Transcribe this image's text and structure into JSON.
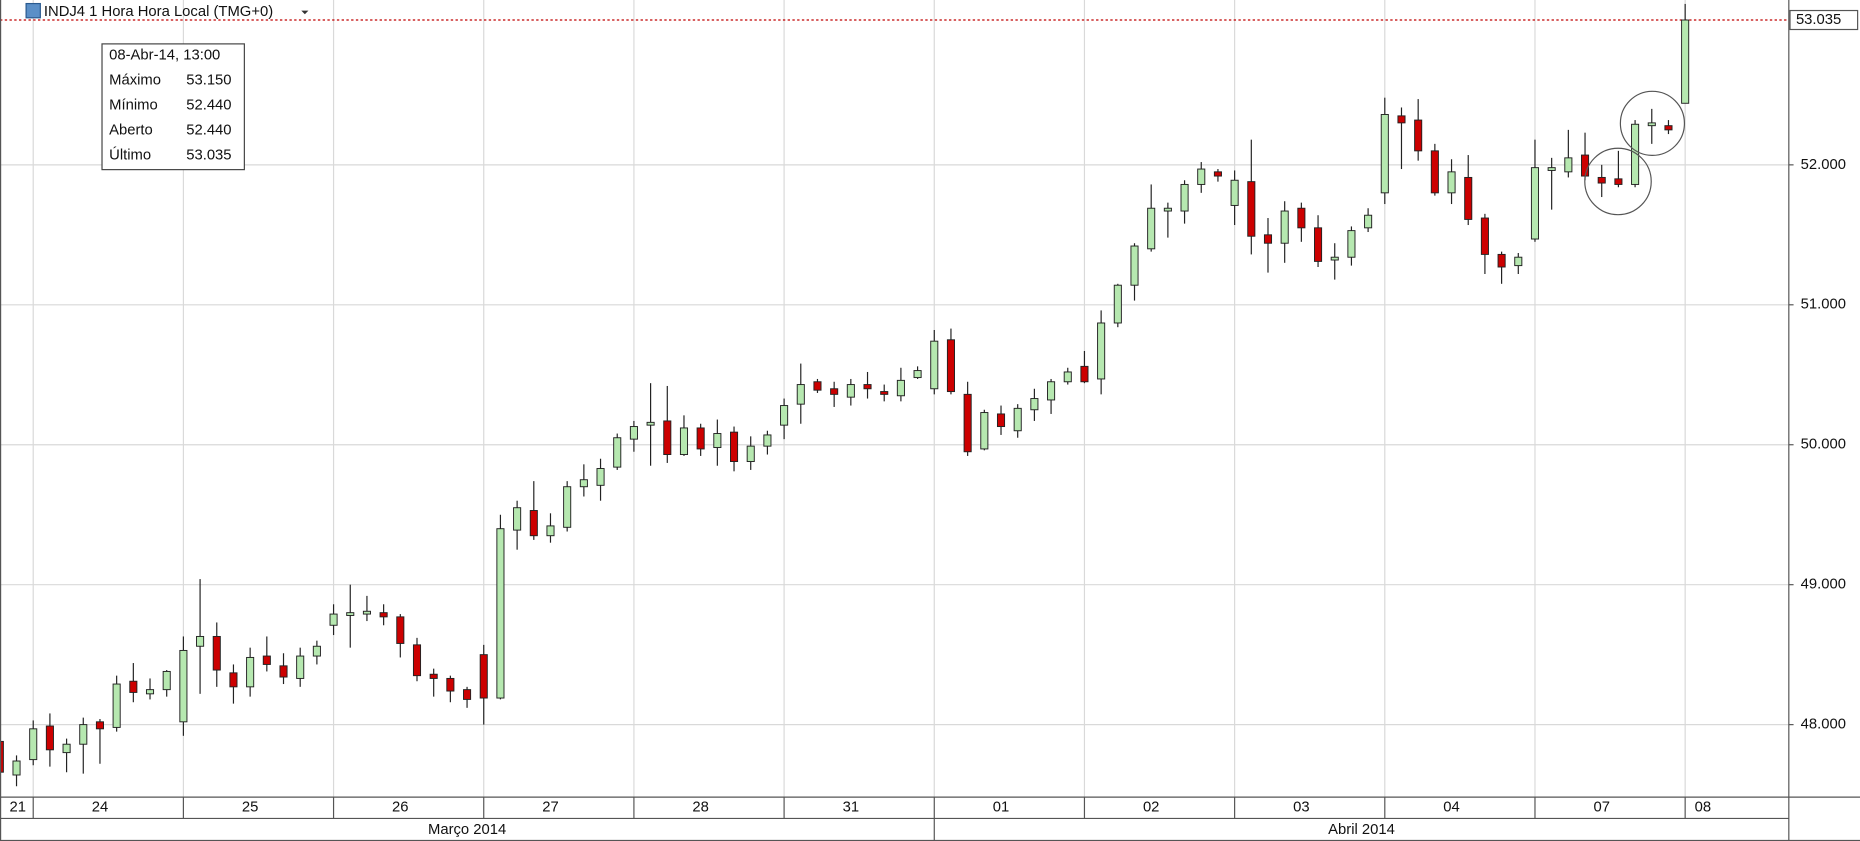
{
  "chart_data": {
    "type": "candlestick",
    "title": "INDJ4 1 Hora Hora Local (TMG+0)",
    "categories": [
      "21",
      null,
      "24",
      null,
      null,
      null,
      null,
      null,
      null,
      null,
      null,
      "25",
      null,
      null,
      null,
      null,
      null,
      null,
      null,
      null,
      "26",
      null,
      null,
      null,
      null,
      null,
      null,
      null,
      null,
      "27",
      null,
      null,
      null,
      null,
      null,
      null,
      null,
      null,
      "28",
      null,
      null,
      null,
      null,
      null,
      null,
      null,
      null,
      "31",
      null,
      null,
      null,
      null,
      null,
      null,
      null,
      null,
      "01",
      null,
      null,
      null,
      null,
      null,
      null,
      null,
      null,
      "02",
      null,
      null,
      null,
      null,
      null,
      null,
      null,
      null,
      "03",
      null,
      null,
      null,
      null,
      null,
      null,
      null,
      null,
      "04",
      null,
      null,
      null,
      null,
      null,
      null,
      null,
      null,
      "07",
      null,
      null,
      null,
      null,
      null,
      null,
      null,
      null,
      "08"
    ],
    "months": [
      "Março 2014",
      null,
      null,
      null,
      null,
      null,
      null,
      null,
      null,
      null,
      null,
      null,
      null,
      null,
      null,
      null,
      null,
      null,
      null,
      null,
      null,
      null,
      null,
      null,
      null,
      null,
      null,
      null,
      null,
      null,
      null,
      null,
      null,
      null,
      null,
      null,
      null,
      null,
      null,
      null,
      null,
      null,
      null,
      null,
      null,
      null,
      null,
      null,
      null,
      null,
      null,
      null,
      null,
      null,
      null,
      null,
      "Abril 2014",
      null,
      null,
      null,
      null,
      null,
      null,
      null,
      null,
      null,
      null,
      null,
      null,
      null,
      null,
      null,
      null,
      null,
      null,
      null,
      null,
      null,
      null,
      null,
      null,
      null,
      null,
      null,
      null,
      null,
      null,
      null,
      null,
      null,
      null,
      null,
      null,
      null,
      null,
      null,
      null,
      null,
      null,
      null,
      null,
      null
    ],
    "series": {
      "open": [
        47.88,
        47.64,
        47.75,
        47.99,
        47.8,
        47.86,
        48.02,
        47.98,
        48.31,
        48.22,
        48.25,
        48.02,
        48.56,
        48.63,
        48.37,
        48.27,
        48.49,
        48.42,
        48.33,
        48.49,
        48.71,
        48.78,
        48.79,
        48.8,
        48.77,
        48.57,
        48.36,
        48.33,
        48.25,
        48.5,
        48.19,
        49.39,
        49.53,
        49.35,
        49.41,
        49.7,
        49.71,
        49.84,
        50.04,
        50.14,
        50.17,
        49.93,
        50.12,
        49.98,
        50.09,
        49.88,
        49.99,
        50.14,
        50.29,
        50.45,
        50.4,
        50.34,
        50.43,
        50.38,
        50.35,
        50.48,
        50.4,
        50.75,
        50.36,
        49.97,
        50.22,
        50.1,
        50.25,
        50.32,
        50.45,
        50.56,
        50.47,
        50.87,
        51.14,
        51.4,
        51.67,
        51.67,
        51.86,
        51.95,
        51.71,
        51.88,
        51.5,
        51.44,
        51.69,
        51.55,
        51.32,
        51.34,
        51.55,
        51.8,
        52.35,
        52.32,
        52.1,
        51.8,
        51.91,
        51.62,
        51.36,
        51.28,
        51.47,
        51.96,
        51.95,
        52.07,
        51.91,
        51.9,
        51.86,
        52.28,
        52.28,
        52.44
      ],
      "high": [
        47.9,
        47.78,
        48.03,
        48.08,
        47.9,
        48.05,
        48.04,
        48.35,
        48.44,
        48.33,
        48.39,
        48.63,
        49.04,
        48.73,
        48.43,
        48.55,
        48.63,
        48.51,
        48.55,
        48.6,
        48.86,
        49.0,
        48.92,
        48.86,
        48.79,
        48.62,
        48.4,
        48.35,
        48.27,
        48.57,
        49.5,
        49.6,
        49.74,
        49.51,
        49.74,
        49.86,
        49.9,
        50.08,
        50.17,
        50.44,
        50.42,
        50.21,
        50.15,
        50.18,
        50.13,
        50.06,
        50.1,
        50.33,
        50.58,
        50.47,
        50.45,
        50.47,
        50.52,
        50.43,
        50.55,
        50.56,
        50.82,
        50.83,
        50.45,
        50.25,
        50.28,
        50.29,
        50.4,
        50.47,
        50.55,
        50.67,
        50.96,
        51.15,
        51.44,
        51.86,
        51.73,
        51.89,
        52.02,
        51.97,
        51.96,
        52.18,
        51.62,
        51.74,
        51.73,
        51.64,
        51.44,
        51.56,
        51.69,
        52.48,
        52.41,
        52.47,
        52.15,
        52.04,
        52.07,
        51.65,
        51.38,
        51.37,
        52.18,
        52.05,
        52.25,
        52.23,
        52.0,
        52.1,
        52.32,
        52.4,
        52.32,
        53.15
      ],
      "low": [
        47.6,
        47.56,
        47.71,
        47.7,
        47.66,
        47.65,
        47.72,
        47.95,
        48.16,
        48.18,
        48.2,
        47.92,
        48.22,
        48.27,
        48.15,
        48.2,
        48.38,
        48.29,
        48.27,
        48.43,
        48.64,
        48.55,
        48.74,
        48.71,
        48.48,
        48.31,
        48.2,
        48.16,
        48.12,
        48.0,
        48.18,
        49.25,
        49.32,
        49.3,
        49.38,
        49.63,
        49.6,
        49.82,
        49.95,
        49.85,
        49.87,
        49.92,
        49.92,
        49.85,
        49.81,
        49.82,
        49.93,
        50.04,
        50.15,
        50.37,
        50.27,
        50.28,
        50.33,
        50.31,
        50.31,
        50.47,
        50.36,
        50.36,
        49.92,
        49.96,
        50.07,
        50.05,
        50.17,
        50.22,
        50.43,
        50.44,
        50.36,
        50.84,
        51.03,
        51.38,
        51.48,
        51.58,
        51.8,
        51.88,
        51.57,
        51.36,
        51.23,
        51.3,
        51.45,
        51.27,
        51.18,
        51.28,
        51.52,
        51.72,
        51.97,
        52.03,
        51.78,
        51.72,
        51.57,
        51.22,
        51.15,
        51.22,
        51.45,
        51.68,
        51.91,
        51.89,
        51.77,
        51.84,
        51.84,
        52.15,
        52.22,
        52.44
      ],
      "close": [
        47.66,
        47.74,
        47.97,
        47.82,
        47.86,
        48.0,
        47.97,
        48.29,
        48.23,
        48.25,
        48.38,
        48.53,
        48.63,
        48.39,
        48.27,
        48.48,
        48.43,
        48.34,
        48.49,
        48.56,
        48.79,
        48.8,
        48.81,
        48.77,
        48.58,
        48.35,
        48.33,
        48.24,
        48.18,
        48.19,
        49.4,
        49.55,
        49.35,
        49.42,
        49.7,
        49.75,
        49.83,
        50.05,
        50.13,
        50.16,
        49.93,
        50.12,
        49.97,
        50.08,
        49.88,
        49.99,
        50.07,
        50.28,
        50.43,
        50.39,
        50.36,
        50.43,
        50.4,
        50.36,
        50.46,
        50.53,
        50.74,
        50.38,
        49.95,
        50.23,
        50.13,
        50.26,
        50.33,
        50.45,
        50.52,
        50.45,
        50.87,
        51.14,
        51.42,
        51.69,
        51.69,
        51.86,
        51.97,
        51.92,
        51.89,
        51.49,
        51.44,
        51.67,
        51.55,
        51.31,
        51.34,
        51.53,
        51.64,
        52.36,
        52.3,
        52.1,
        51.8,
        51.95,
        51.61,
        51.36,
        51.27,
        51.34,
        51.98,
        51.98,
        52.05,
        51.92,
        51.87,
        51.86,
        52.29,
        52.3,
        52.25,
        53.035
      ]
    },
    "colors": {
      "up": "#b6e8b0",
      "down": "#cc0000",
      "outline": "#222222",
      "last_price": "#c00000"
    },
    "ylim": [
      47.482,
      53.178
    ],
    "yticks": [
      {
        "value": 48,
        "label": "48.000"
      },
      {
        "value": 49,
        "label": "49.000"
      },
      {
        "value": 50,
        "label": "50.000"
      },
      {
        "value": 51,
        "label": "51.000"
      },
      {
        "value": 52,
        "label": "52.000"
      }
    ],
    "grid": true,
    "last_price": {
      "value": 53.035,
      "label": "53.035"
    },
    "tooltip": {
      "date": "08-Abr-14, 13:00",
      "rows": [
        [
          "Máximo",
          "53.150"
        ],
        [
          "Mínimo",
          "52.440"
        ],
        [
          "Aberto",
          "52.440"
        ],
        [
          "Último",
          "53.035"
        ]
      ]
    }
  }
}
